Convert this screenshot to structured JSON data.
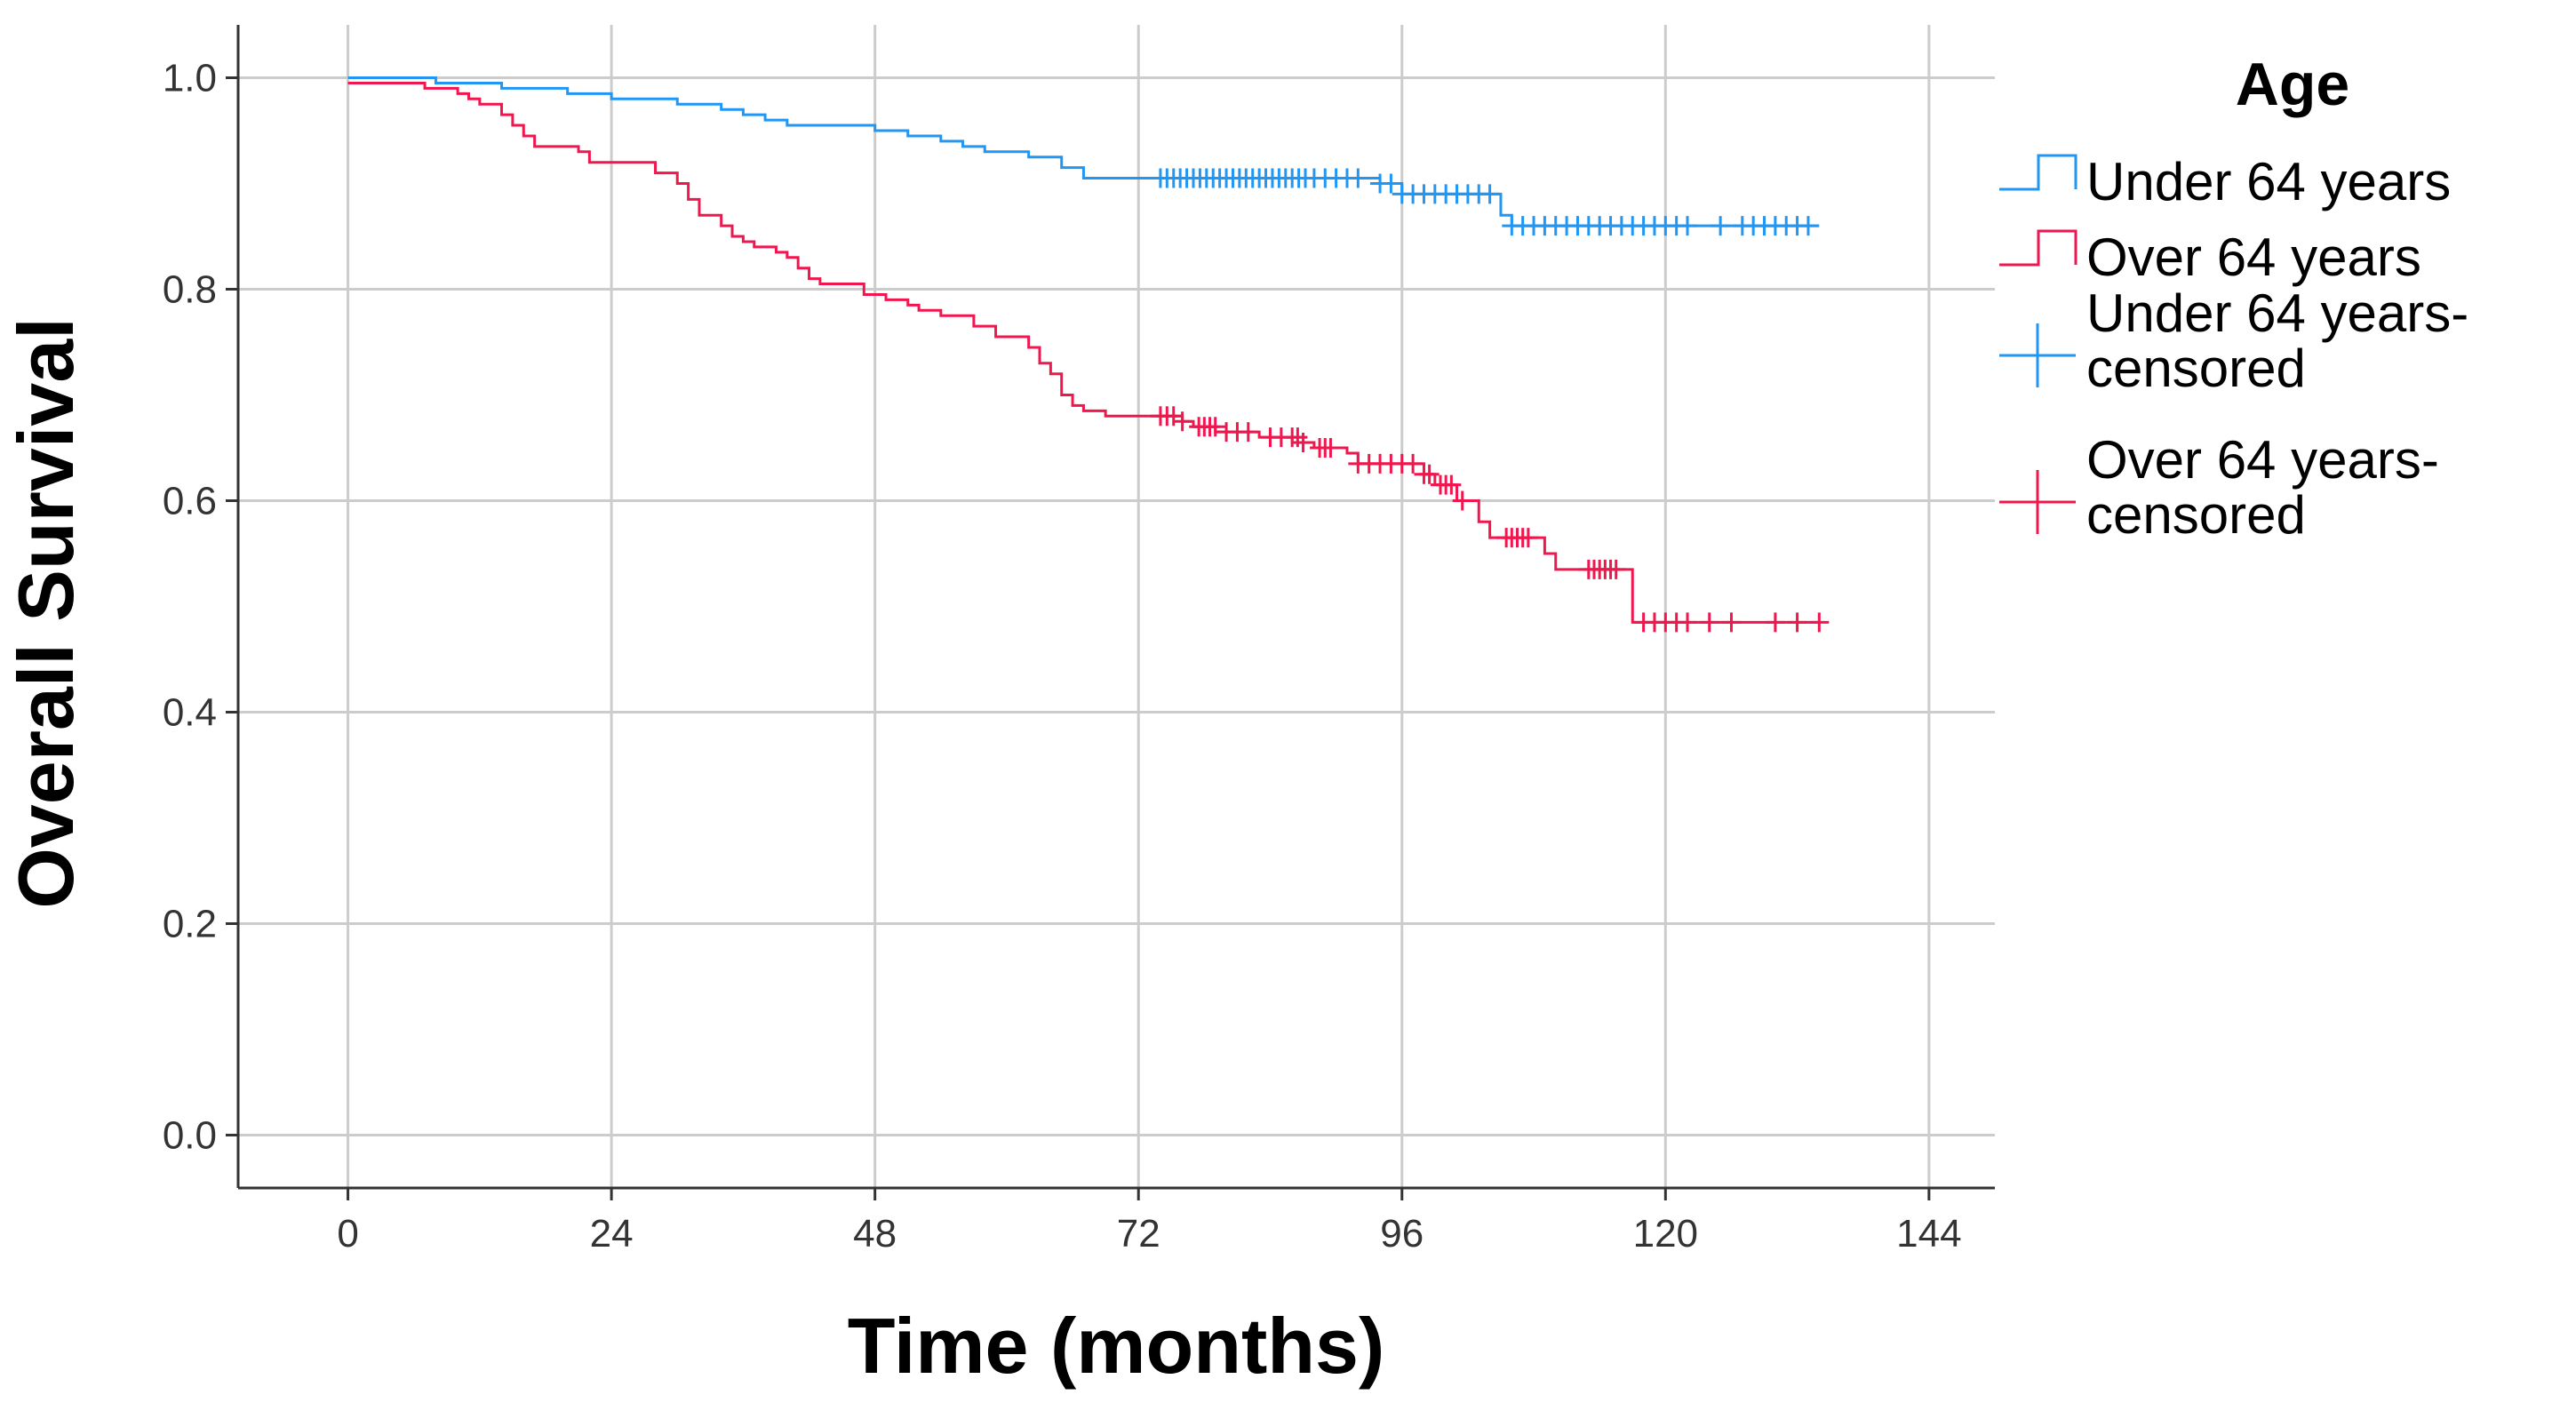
{
  "chart_data": {
    "type": "line",
    "subtype": "kaplan-meier-step",
    "title": "",
    "xlabel": "Time (months)",
    "ylabel": "Overall Survival",
    "xlim": [
      -10,
      150
    ],
    "ylim": [
      -0.05,
      1.05
    ],
    "xticks": [
      "0",
      "24",
      "48",
      "72",
      "96",
      "120",
      "144"
    ],
    "xtick_values": [
      0,
      24,
      48,
      72,
      96,
      120,
      144
    ],
    "yticks": [
      "0.0",
      "0.2",
      "0.4",
      "0.6",
      "0.8",
      "1.0"
    ],
    "ytick_values": [
      0,
      0.2,
      0.4,
      0.6,
      0.8,
      1.0
    ],
    "grid": true,
    "legend": {
      "title": "Age",
      "position": "right",
      "entries": [
        {
          "label": "Under 64 years",
          "symbol": "step",
          "color": "#2196f3"
        },
        {
          "label": "Over 64 years",
          "symbol": "step",
          "color": "#f0174f"
        },
        {
          "label": "Under 64 years-censored",
          "symbol": "plus",
          "color": "#2196f3"
        },
        {
          "label": "Over 64 years-censored",
          "symbol": "plus",
          "color": "#f0174f"
        }
      ]
    },
    "series": [
      {
        "name": "Under 64 years",
        "color": "#2196f3",
        "steps": [
          [
            0,
            1.0
          ],
          [
            8,
            0.995
          ],
          [
            14,
            0.99
          ],
          [
            20,
            0.985
          ],
          [
            24,
            0.98
          ],
          [
            30,
            0.975
          ],
          [
            34,
            0.97
          ],
          [
            36,
            0.965
          ],
          [
            38,
            0.96
          ],
          [
            40,
            0.955
          ],
          [
            48,
            0.95
          ],
          [
            51,
            0.945
          ],
          [
            54,
            0.94
          ],
          [
            56,
            0.935
          ],
          [
            58,
            0.93
          ],
          [
            62,
            0.925
          ],
          [
            65,
            0.915
          ],
          [
            67,
            0.905
          ],
          [
            94,
            0.9
          ],
          [
            96,
            0.89
          ],
          [
            105,
            0.87
          ],
          [
            106,
            0.86
          ],
          [
            134,
            0.86
          ]
        ],
        "censored": [
          [
            74,
            0.905
          ],
          [
            74.6,
            0.905
          ],
          [
            75.2,
            0.905
          ],
          [
            75.8,
            0.905
          ],
          [
            76.4,
            0.905
          ],
          [
            77,
            0.905
          ],
          [
            77.6,
            0.905
          ],
          [
            78.2,
            0.905
          ],
          [
            78.8,
            0.905
          ],
          [
            79.4,
            0.905
          ],
          [
            80,
            0.905
          ],
          [
            80.6,
            0.905
          ],
          [
            81.2,
            0.905
          ],
          [
            81.8,
            0.905
          ],
          [
            82.4,
            0.905
          ],
          [
            83,
            0.905
          ],
          [
            83.6,
            0.905
          ],
          [
            84.2,
            0.905
          ],
          [
            84.8,
            0.905
          ],
          [
            85.4,
            0.905
          ],
          [
            86,
            0.905
          ],
          [
            86.6,
            0.905
          ],
          [
            87.2,
            0.905
          ],
          [
            88,
            0.905
          ],
          [
            89,
            0.905
          ],
          [
            90,
            0.905
          ],
          [
            91,
            0.905
          ],
          [
            92,
            0.905
          ],
          [
            94,
            0.9
          ],
          [
            95,
            0.9
          ],
          [
            96,
            0.89
          ],
          [
            97,
            0.89
          ],
          [
            98,
            0.89
          ],
          [
            99,
            0.89
          ],
          [
            100,
            0.89
          ],
          [
            101,
            0.89
          ],
          [
            102,
            0.89
          ],
          [
            103,
            0.89
          ],
          [
            104,
            0.89
          ],
          [
            106,
            0.86
          ],
          [
            107,
            0.86
          ],
          [
            108,
            0.86
          ],
          [
            109,
            0.86
          ],
          [
            110,
            0.86
          ],
          [
            111,
            0.86
          ],
          [
            112,
            0.86
          ],
          [
            113,
            0.86
          ],
          [
            114,
            0.86
          ],
          [
            115,
            0.86
          ],
          [
            116,
            0.86
          ],
          [
            117,
            0.86
          ],
          [
            118,
            0.86
          ],
          [
            119,
            0.86
          ],
          [
            120,
            0.86
          ],
          [
            121,
            0.86
          ],
          [
            122,
            0.86
          ],
          [
            125,
            0.86
          ],
          [
            127,
            0.86
          ],
          [
            128,
            0.86
          ],
          [
            129,
            0.86
          ],
          [
            130,
            0.86
          ],
          [
            131,
            0.86
          ],
          [
            132,
            0.86
          ],
          [
            133,
            0.86
          ]
        ]
      },
      {
        "name": "Over 64 years",
        "color": "#f0174f",
        "steps": [
          [
            0,
            0.995
          ],
          [
            7,
            0.99
          ],
          [
            10,
            0.985
          ],
          [
            11,
            0.98
          ],
          [
            12,
            0.975
          ],
          [
            14,
            0.965
          ],
          [
            15,
            0.955
          ],
          [
            16,
            0.945
          ],
          [
            17,
            0.935
          ],
          [
            21,
            0.93
          ],
          [
            22,
            0.92
          ],
          [
            28,
            0.91
          ],
          [
            30,
            0.9
          ],
          [
            31,
            0.885
          ],
          [
            32,
            0.87
          ],
          [
            34,
            0.86
          ],
          [
            35,
            0.85
          ],
          [
            36,
            0.845
          ],
          [
            37,
            0.84
          ],
          [
            39,
            0.835
          ],
          [
            40,
            0.83
          ],
          [
            41,
            0.82
          ],
          [
            42,
            0.81
          ],
          [
            43,
            0.805
          ],
          [
            47,
            0.795
          ],
          [
            49,
            0.79
          ],
          [
            51,
            0.785
          ],
          [
            52,
            0.78
          ],
          [
            54,
            0.775
          ],
          [
            57,
            0.765
          ],
          [
            59,
            0.755
          ],
          [
            62,
            0.745
          ],
          [
            63,
            0.73
          ],
          [
            64,
            0.72
          ],
          [
            65,
            0.7
          ],
          [
            66,
            0.69
          ],
          [
            67,
            0.685
          ],
          [
            69,
            0.68
          ],
          [
            76,
            0.675
          ],
          [
            77,
            0.67
          ],
          [
            79,
            0.665
          ],
          [
            83,
            0.66
          ],
          [
            86,
            0.655
          ],
          [
            88,
            0.65
          ],
          [
            91,
            0.645
          ],
          [
            92,
            0.635
          ],
          [
            98,
            0.625
          ],
          [
            99,
            0.615
          ],
          [
            101,
            0.6
          ],
          [
            103,
            0.58
          ],
          [
            104,
            0.565
          ],
          [
            109,
            0.55
          ],
          [
            110,
            0.535
          ],
          [
            117,
            0.485
          ],
          [
            134,
            0.485
          ]
        ],
        "censored": [
          [
            74,
            0.68
          ],
          [
            74.6,
            0.68
          ],
          [
            75.2,
            0.68
          ],
          [
            76,
            0.675
          ],
          [
            77.5,
            0.67
          ],
          [
            78,
            0.67
          ],
          [
            78.5,
            0.67
          ],
          [
            79,
            0.67
          ],
          [
            80,
            0.665
          ],
          [
            81,
            0.665
          ],
          [
            82,
            0.665
          ],
          [
            84,
            0.66
          ],
          [
            85,
            0.66
          ],
          [
            86,
            0.66
          ],
          [
            86.5,
            0.66
          ],
          [
            87,
            0.655
          ],
          [
            88.5,
            0.65
          ],
          [
            89,
            0.65
          ],
          [
            89.5,
            0.65
          ],
          [
            92,
            0.635
          ],
          [
            93,
            0.635
          ],
          [
            94,
            0.635
          ],
          [
            95,
            0.635
          ],
          [
            96,
            0.635
          ],
          [
            97,
            0.635
          ],
          [
            98,
            0.625
          ],
          [
            98.5,
            0.625
          ],
          [
            99.5,
            0.615
          ],
          [
            100,
            0.615
          ],
          [
            100.5,
            0.615
          ],
          [
            101.5,
            0.6
          ],
          [
            105.5,
            0.565
          ],
          [
            106,
            0.565
          ],
          [
            106.5,
            0.565
          ],
          [
            107,
            0.565
          ],
          [
            107.5,
            0.565
          ],
          [
            113,
            0.535
          ],
          [
            113.5,
            0.535
          ],
          [
            114,
            0.535
          ],
          [
            114.5,
            0.535
          ],
          [
            115,
            0.535
          ],
          [
            115.5,
            0.535
          ],
          [
            118,
            0.485
          ],
          [
            119,
            0.485
          ],
          [
            120,
            0.485
          ],
          [
            121,
            0.485
          ],
          [
            122,
            0.485
          ],
          [
            124,
            0.485
          ],
          [
            126,
            0.485
          ],
          [
            130,
            0.485
          ],
          [
            132,
            0.485
          ],
          [
            134,
            0.485
          ]
        ]
      }
    ]
  }
}
